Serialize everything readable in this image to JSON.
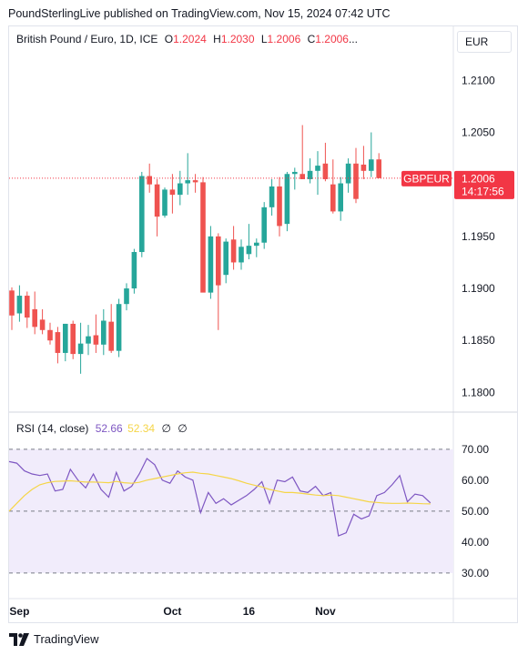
{
  "header": {
    "published": "PoundSterlingLive published on TradingView.com, Nov 15, 2024 07:42 UTC"
  },
  "legend": {
    "symbol": "British Pound / Euro, 1D, ICE",
    "o_label": "O",
    "o_value": "1.2024",
    "h_label": "H",
    "h_value": "1.2030",
    "l_label": "L",
    "l_value": "1.2006",
    "c_label": "C",
    "c_value": "1.2006",
    "more": "..."
  },
  "currency": "EUR",
  "price_tag": {
    "symbol": "GBPEUR",
    "price": "1.2006",
    "countdown": "14:17:56"
  },
  "rsi_legend": {
    "name": "RSI (14, close)",
    "rsi_value": "52.66",
    "ma_value": "52.34",
    "na1": "∅",
    "na2": "∅"
  },
  "footer": {
    "brand": "TradingView"
  },
  "colors": {
    "up": "#26a69a",
    "down": "#ef5350",
    "rsi": "#7e57c2",
    "rsi_ma": "#f5d547",
    "band": "#f1ecfb",
    "price_tag": "#f23645"
  },
  "chart_data": [
    {
      "type": "candlestick",
      "title": "British Pound / Euro, 1D, ICE",
      "y_ticks": [
        "1.2100",
        "1.2050",
        "1.2000",
        "1.1950",
        "1.1900",
        "1.1850",
        "1.1800"
      ],
      "x_ticks": [
        {
          "label": "Sep",
          "index": 1
        },
        {
          "label": "Oct",
          "index": 21
        },
        {
          "label": "16",
          "index": 31
        },
        {
          "label": "Nov",
          "index": 41
        }
      ],
      "ylim": [
        1.1782,
        1.213
      ],
      "last_price_line": 1.2006,
      "candles": [
        [
          1.1898,
          1.1901,
          1.186,
          1.1874
        ],
        [
          1.1876,
          1.1903,
          1.1868,
          1.1893
        ],
        [
          1.1893,
          1.1897,
          1.1862,
          1.1872
        ],
        [
          1.188,
          1.1897,
          1.1856,
          1.1863
        ],
        [
          1.187,
          1.188,
          1.1856,
          1.186
        ],
        [
          1.186,
          1.1867,
          1.1846,
          1.185
        ],
        [
          1.1858,
          1.1863,
          1.1828,
          1.1838
        ],
        [
          1.1838,
          1.1866,
          1.183,
          1.1866
        ],
        [
          1.1866,
          1.1869,
          1.1832,
          1.1837
        ],
        [
          1.1837,
          1.1867,
          1.1818,
          1.1847
        ],
        [
          1.1847,
          1.1865,
          1.1836,
          1.1854
        ],
        [
          1.1855,
          1.1875,
          1.1838,
          1.1846
        ],
        [
          1.1846,
          1.188,
          1.1836,
          1.1869
        ],
        [
          1.1868,
          1.1885,
          1.1838,
          1.184
        ],
        [
          1.184,
          1.189,
          1.1834,
          1.1885
        ],
        [
          1.1885,
          1.1905,
          1.1879,
          1.19
        ],
        [
          1.19,
          1.1938,
          1.1895,
          1.1935
        ],
        [
          1.1935,
          1.2012,
          1.193,
          1.2008
        ],
        [
          1.2008,
          1.202,
          1.1992,
          1.2
        ],
        [
          1.2,
          1.2005,
          1.195,
          1.1969
        ],
        [
          1.197,
          1.1997,
          1.1968,
          1.1995
        ],
        [
          1.1995,
          1.201,
          1.1972,
          1.199
        ],
        [
          1.199,
          1.2013,
          1.198,
          1.2001
        ],
        [
          1.2001,
          1.203,
          1.199,
          1.2004
        ],
        [
          1.2004,
          1.201,
          1.1992,
          1.2002
        ],
        [
          1.2002,
          1.2007,
          1.1898,
          1.1896
        ],
        [
          1.1896,
          1.196,
          1.189,
          1.195
        ],
        [
          1.195,
          1.1953,
          1.186,
          1.1903
        ],
        [
          1.1913,
          1.1948,
          1.1905,
          1.1945
        ],
        [
          1.1947,
          1.196,
          1.1918,
          1.1925
        ],
        [
          1.1925,
          1.1947,
          1.1918,
          1.194
        ],
        [
          1.1933,
          1.1962,
          1.1928,
          1.1941
        ],
        [
          1.1941,
          1.1948,
          1.193,
          1.1944
        ],
        [
          1.1944,
          1.1983,
          1.1938,
          1.1978
        ],
        [
          1.1978,
          1.2005,
          1.197,
          1.1998
        ],
        [
          1.1998,
          1.2007,
          1.195,
          1.196
        ],
        [
          1.1962,
          1.2012,
          1.1955,
          1.201
        ],
        [
          1.201,
          1.2016,
          1.1995,
          1.2012
        ],
        [
          1.201,
          1.2057,
          1.2005,
          1.2005
        ],
        [
          1.2005,
          1.2025,
          1.2001,
          1.2013
        ],
        [
          1.2013,
          1.2032,
          1.199,
          1.2018
        ],
        [
          1.202,
          1.204,
          1.2003,
          1.2005
        ],
        [
          1.2,
          1.2024,
          1.1972,
          1.1974
        ],
        [
          1.1974,
          1.2007,
          1.1965,
          1.2001
        ],
        [
          1.2001,
          1.2025,
          1.1992,
          1.202
        ],
        [
          1.202,
          1.2035,
          1.1982,
          1.1986
        ],
        [
          1.2019,
          1.2037,
          1.2005,
          1.2013
        ],
        [
          1.2013,
          1.205,
          1.2007,
          1.2024
        ],
        [
          1.2024,
          1.203,
          1.2006,
          1.2006
        ]
      ]
    },
    {
      "type": "line",
      "title": "RSI (14, close)",
      "y_ticks": [
        "70.00",
        "60.00",
        "50.00",
        "40.00",
        "30.00"
      ],
      "ylim": [
        23.5,
        77
      ],
      "band": [
        30,
        70
      ],
      "midline": 50,
      "series": [
        {
          "name": "RSI",
          "values": [
            66,
            65.5,
            63,
            62,
            61.5,
            62,
            56.5,
            57,
            63.5,
            60,
            57.5,
            62,
            57,
            54.5,
            62.5,
            56.5,
            58,
            62,
            67,
            65,
            60,
            59,
            63,
            61,
            60,
            49.5,
            56,
            52.5,
            54,
            52,
            53.5,
            55,
            57,
            59.5,
            52.5,
            60,
            59.5,
            61,
            56.5,
            56,
            58,
            55,
            56,
            42,
            43,
            49,
            47.5,
            48.5,
            55,
            56,
            58.5,
            61.5,
            53,
            55.5,
            55,
            52.66
          ]
        },
        {
          "name": "RSI-based MA",
          "values": [
            50,
            52.5,
            55,
            57,
            58.5,
            59.2,
            59.6,
            59.7,
            59.8,
            59.6,
            59.4,
            59.4,
            59.3,
            59.2,
            59.6,
            59.2,
            59,
            59.3,
            60,
            60.5,
            61,
            61.5,
            62,
            62.4,
            62.6,
            62.2,
            62,
            61.5,
            61,
            60.5,
            59.8,
            59,
            58.4,
            57.8,
            57,
            56.5,
            56,
            56,
            55.8,
            55.5,
            55.2,
            55,
            55.2,
            55,
            54.5,
            54,
            53.5,
            53,
            52.8,
            52.6,
            52.5,
            52.5,
            52.6,
            52.5,
            52.4,
            52.34
          ]
        }
      ],
      "x_range": [
        0,
        58
      ]
    }
  ]
}
